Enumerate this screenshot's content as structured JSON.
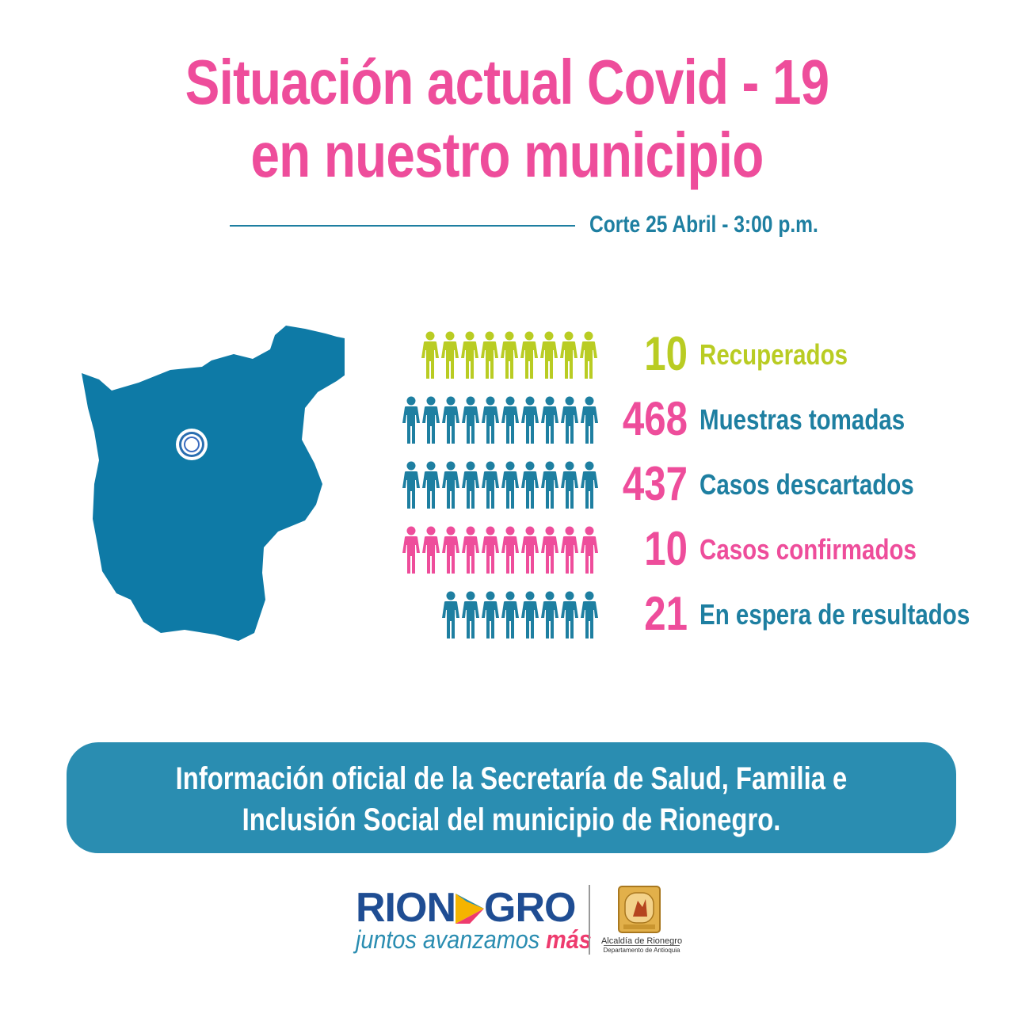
{
  "title": {
    "line1": "Situación actual Covid - 19",
    "line2": "en nuestro municipio"
  },
  "cutoff": "Corte 25 Abril - 3:00 p.m.",
  "map": {
    "color": "#0e7aa6",
    "marker_icon": "location-ring-icon"
  },
  "stats": [
    {
      "value": "10",
      "label": "Recuperados",
      "color": "#b9cc23",
      "icons": 9
    },
    {
      "value": "468",
      "label": "Muestras tomadas",
      "color": "#1e7fa1",
      "icons": 10
    },
    {
      "value": "437",
      "label": "Casos descartados",
      "color": "#1e7fa1",
      "icons": 10
    },
    {
      "value": "10",
      "label": "Casos confirmados",
      "color": "#ee4d9b",
      "icons": 10
    },
    {
      "value": "21",
      "label": "En espera de resultados",
      "color": "#1e7fa1",
      "icons": 8
    }
  ],
  "stat_number_color": "#ee4d9b",
  "stat_number_color_recovered": "#b9cc23",
  "banner": {
    "line1": "Información oficial de la Secretaría de Salud, Familia e",
    "line2": "Inclusión Social del municipio de Rionegro."
  },
  "footer": {
    "logo_left": "RION",
    "logo_right": "GRO",
    "slogan": "juntos avanzamos",
    "slogan_accent": "más",
    "seal_caption1": "Alcaldía de Rionegro",
    "seal_caption2": "Departamento de Antioquia"
  }
}
